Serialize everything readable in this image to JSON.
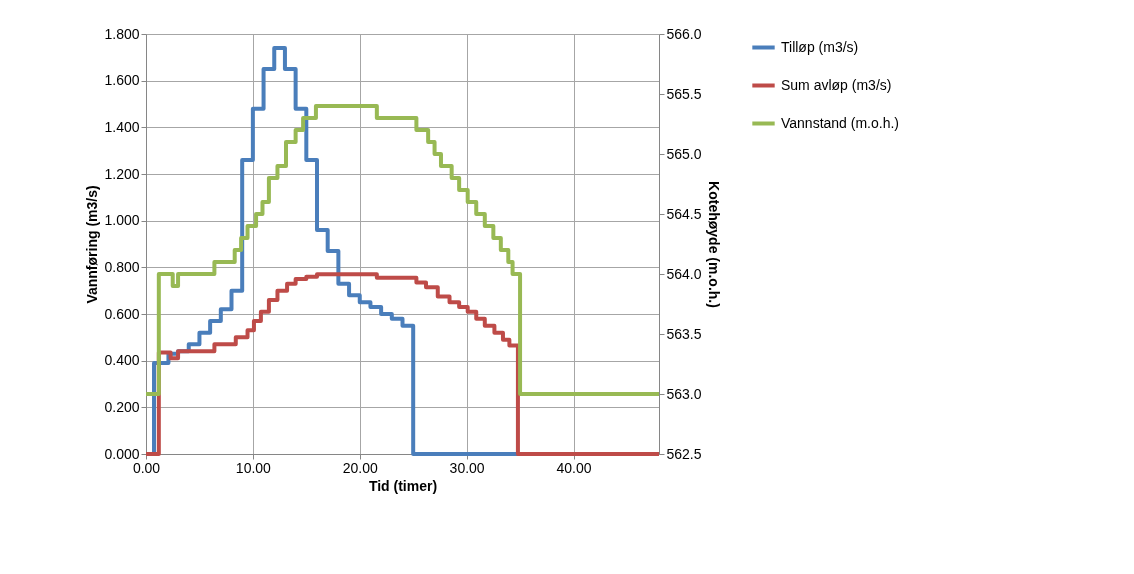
{
  "chart_data": {
    "type": "step",
    "xlabel": "Tid (timer)",
    "ylabel": "Vannføring (m3/s)",
    "y2label": "Kotehøyde (m.o.h.)",
    "xlim": [
      0,
      48
    ],
    "xticks": [
      {
        "value": 0,
        "label": "0.00"
      },
      {
        "value": 10,
        "label": "10.00"
      },
      {
        "value": 20,
        "label": "20.00"
      },
      {
        "value": 30,
        "label": "30.00"
      },
      {
        "value": 40,
        "label": "40.00"
      }
    ],
    "ylim": [
      0,
      1.8
    ],
    "yticks": [
      {
        "value": 0,
        "label": "0.000"
      },
      {
        "value": 0.2,
        "label": "0.200"
      },
      {
        "value": 0.4,
        "label": "0.400"
      },
      {
        "value": 0.6,
        "label": "0.600"
      },
      {
        "value": 0.8,
        "label": "0.800"
      },
      {
        "value": 1,
        "label": "1.000"
      },
      {
        "value": 1.2,
        "label": "1.200"
      },
      {
        "value": 1.4,
        "label": "1.400"
      },
      {
        "value": 1.6,
        "label": "1.600"
      },
      {
        "value": 1.8,
        "label": "1.800"
      }
    ],
    "y2lim": [
      562.5,
      566
    ],
    "y2ticks": [
      {
        "value": 562.5,
        "label": "562.5"
      },
      {
        "value": 563,
        "label": "563.0"
      },
      {
        "value": 563.5,
        "label": "563.5"
      },
      {
        "value": 564,
        "label": "564.0"
      },
      {
        "value": 564.5,
        "label": "564.5"
      },
      {
        "value": 565,
        "label": "565.0"
      },
      {
        "value": 565.5,
        "label": "565.5"
      },
      {
        "value": 566,
        "label": "566.0"
      }
    ],
    "grid": true,
    "legend": "right",
    "series": [
      {
        "name": "Tilløp (m3/s)",
        "color": "#4a7ebb",
        "x": [
          0,
          0.75,
          2.1,
          3,
          4,
          5,
          6,
          7,
          8,
          9,
          10,
          11,
          12,
          13,
          14,
          15,
          16,
          17,
          18,
          19,
          20,
          21,
          22,
          23,
          24,
          25,
          48
        ],
        "values": [
          0,
          0.39,
          0.43,
          0.44,
          0.47,
          0.52,
          0.57,
          0.62,
          0.7,
          1.26,
          1.48,
          1.65,
          1.74,
          1.65,
          1.48,
          1.26,
          0.96,
          0.87,
          0.73,
          0.68,
          0.65,
          0.63,
          0.6,
          0.58,
          0.55,
          0,
          0
        ]
      },
      {
        "name": "Sum avløp (m3/s)",
        "color": "#be4b48",
        "x": [
          0,
          1.2,
          2.3,
          3.0,
          6.4,
          8.4,
          9.5,
          10.1,
          10.75,
          11.5,
          12.3,
          13.2,
          14.0,
          15.0,
          16.0,
          21.6,
          25.3,
          26.2,
          27.3,
          28.4,
          29.3,
          30.1,
          30.9,
          31.7,
          32.6,
          33.4,
          34.0,
          34.8,
          48
        ],
        "values": [
          0,
          0.435,
          0.41,
          0.44,
          0.47,
          0.5,
          0.53,
          0.57,
          0.61,
          0.66,
          0.7,
          0.73,
          0.75,
          0.76,
          0.77,
          0.755,
          0.735,
          0.715,
          0.675,
          0.65,
          0.63,
          0.61,
          0.58,
          0.55,
          0.52,
          0.49,
          0.465,
          0,
          0
        ]
      },
      {
        "name": "Vannstand (m.o.h.)",
        "color": "#98b954",
        "axis": "y2",
        "x": [
          0,
          1.2,
          2.5,
          3.0,
          6.4,
          8.3,
          8.9,
          9.5,
          10.3,
          10.9,
          11.5,
          12.3,
          13.1,
          14.0,
          14.7,
          15.9,
          21.6,
          25.3,
          26.4,
          27.0,
          27.6,
          28.6,
          29.3,
          30.1,
          30.9,
          31.7,
          32.5,
          33.2,
          33.9,
          34.3,
          35.0,
          48
        ],
        "values": [
          563.0,
          564.0,
          563.9,
          564.0,
          564.1,
          564.2,
          564.3,
          564.4,
          564.5,
          564.6,
          564.8,
          564.9,
          565.1,
          565.2,
          565.3,
          565.4,
          565.3,
          565.2,
          565.1,
          565.0,
          564.9,
          564.8,
          564.7,
          564.6,
          564.5,
          564.4,
          564.3,
          564.2,
          564.1,
          564.0,
          563.0,
          563.0
        ]
      }
    ]
  }
}
